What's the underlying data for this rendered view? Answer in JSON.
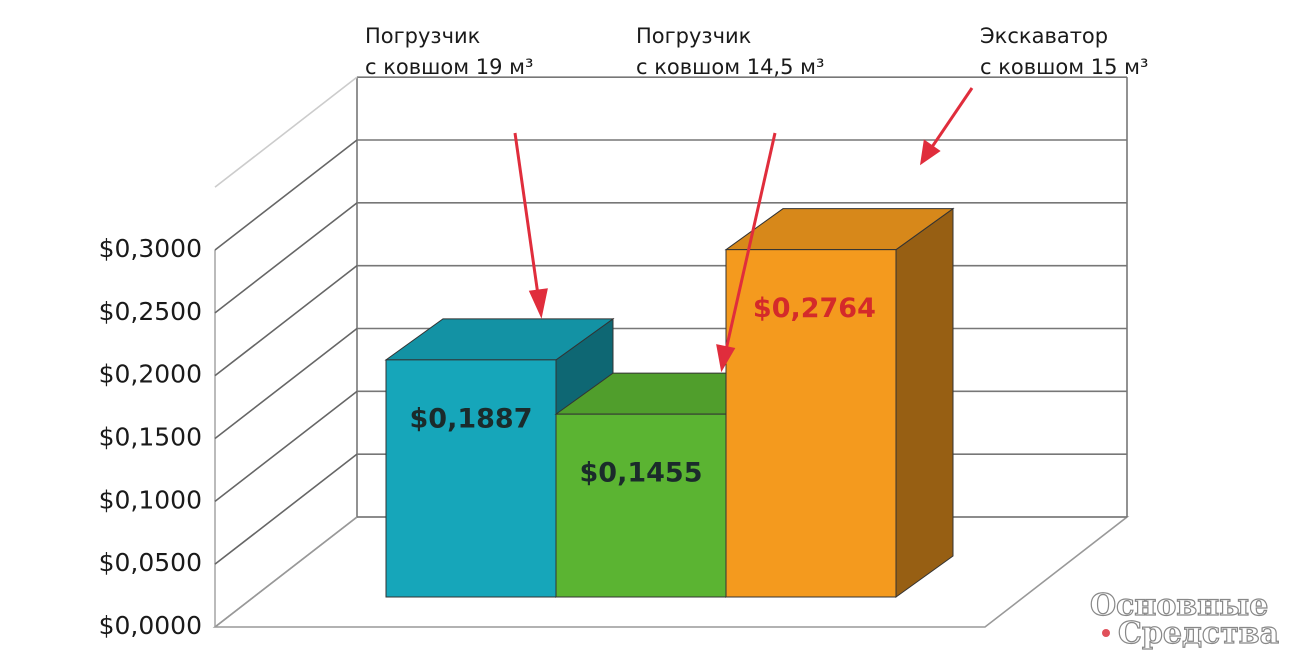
{
  "chart_data": {
    "type": "bar3d",
    "categories": [
      "Погрузчик с ковшом 19 м³",
      "Погрузчик с  ковшом 14,5 м³",
      "Экскаватор с ковшом 15 м³"
    ],
    "series": [
      {
        "values": [
          0.1887,
          0.1455,
          0.2764
        ],
        "value_labels": [
          "$0,1887",
          "$0,1455",
          "$0,2764"
        ],
        "colors": [
          "#16a6ba",
          "#5bb432",
          "#f49a1e"
        ],
        "value_label_colors": [
          "#1b2b2b",
          "#1b2b2b",
          "#d42a2a"
        ]
      }
    ],
    "ylim": [
      0,
      0.35
    ],
    "yticks": [
      {
        "value": 0,
        "label": "$0,0000"
      },
      {
        "value": 0.05,
        "label": "$0,0500"
      },
      {
        "value": 0.1,
        "label": "$0,1000"
      },
      {
        "value": 0.15,
        "label": "$0,1500"
      },
      {
        "value": 0.2,
        "label": "$0,2000"
      },
      {
        "value": 0.25,
        "label": "$0,2500"
      },
      {
        "value": 0.3,
        "label": "$0,3000"
      }
    ],
    "grid": true
  },
  "watermark": "Основные Средства"
}
